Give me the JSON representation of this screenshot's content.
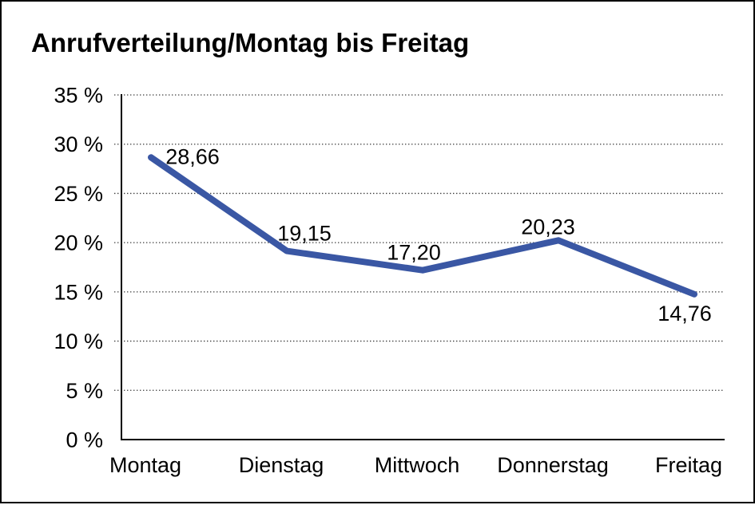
{
  "page": {
    "background_color": "#ffffff",
    "frame_border_color": "#000000"
  },
  "chart_data": {
    "type": "line",
    "title": "Anrufverteilung/Montag bis Freitag",
    "categories": [
      "Montag",
      "Dienstag",
      "Mittwoch",
      "Donnerstag",
      "Freitag"
    ],
    "values": [
      28.66,
      19.15,
      17.2,
      20.23,
      14.76
    ],
    "value_labels": [
      "28,66",
      "19,15",
      "17,20",
      "20,23",
      "14,76"
    ],
    "xlabel": "",
    "ylabel": "",
    "ylim": [
      0,
      35
    ],
    "ytick_step": 5,
    "ytick_labels": [
      "0 %",
      "5 %",
      "10 %",
      "15 %",
      "20 %",
      "25 %",
      "30 %",
      "35 %"
    ],
    "grid": "horizontal-dotted",
    "legend": "none",
    "line_color": "#3A57A4",
    "axis_color": "#000000",
    "gridline_color": "#3a3a3a",
    "text_color": "#000000"
  }
}
